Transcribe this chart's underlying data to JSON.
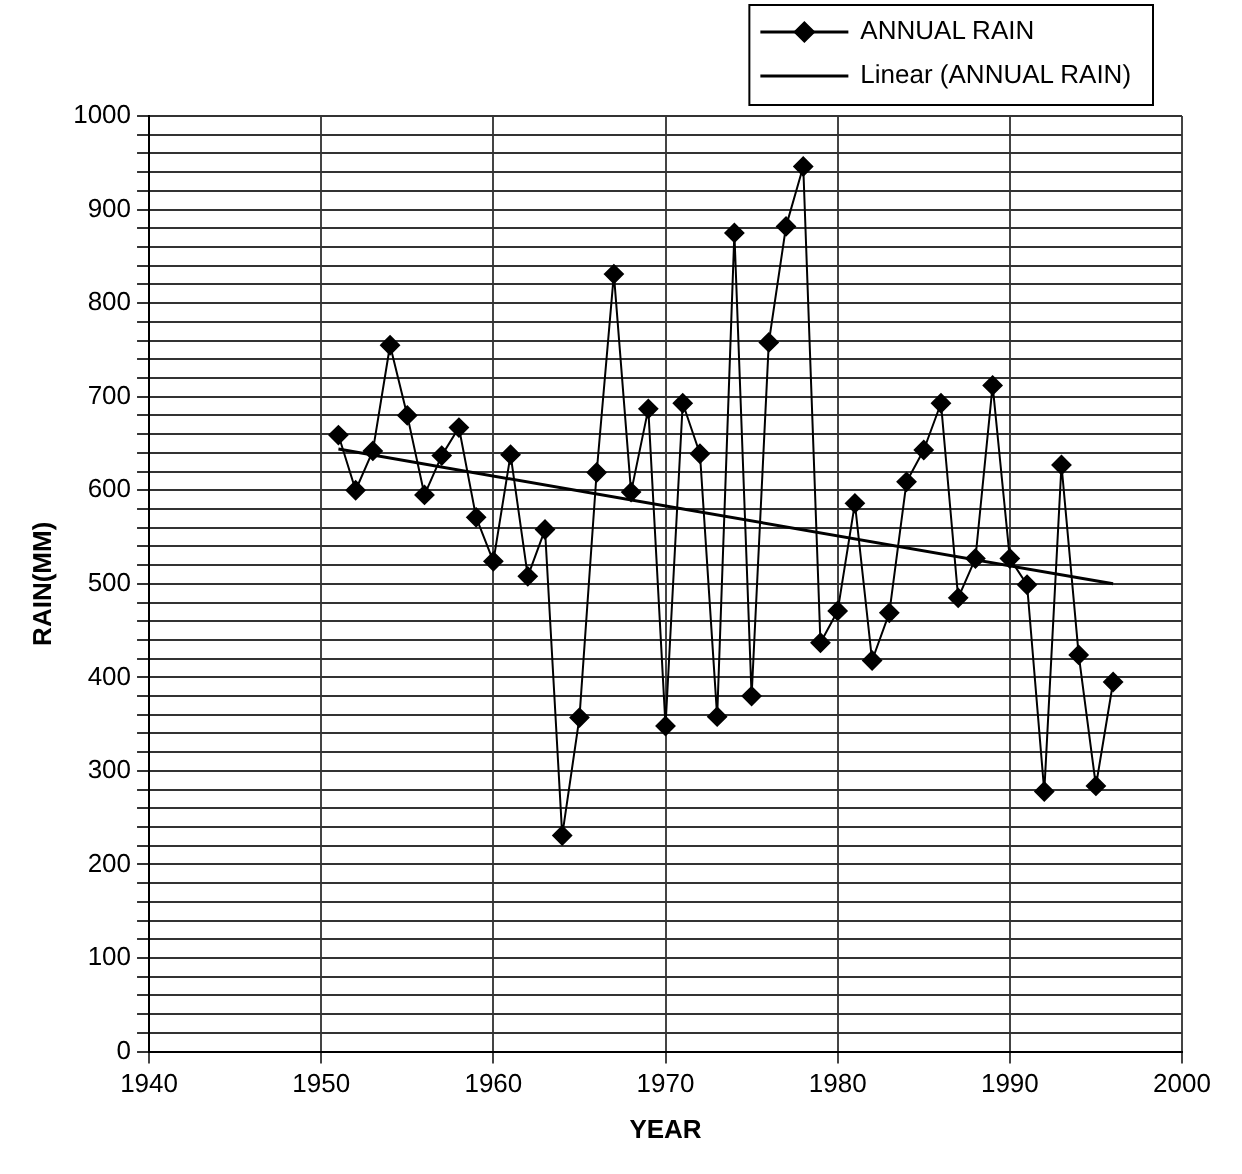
{
  "chart_data": {
    "type": "line",
    "xlabel": "YEAR",
    "ylabel": "RAIN(MM)",
    "x": [
      1951,
      1952,
      1953,
      1954,
      1955,
      1956,
      1957,
      1958,
      1959,
      1960,
      1961,
      1962,
      1963,
      1964,
      1965,
      1966,
      1967,
      1968,
      1969,
      1970,
      1971,
      1972,
      1973,
      1974,
      1975,
      1976,
      1977,
      1978,
      1979,
      1980,
      1981,
      1982,
      1983,
      1984,
      1985,
      1986,
      1987,
      1988,
      1989,
      1990,
      1991,
      1992,
      1993,
      1994,
      1995,
      1996
    ],
    "series": [
      {
        "name": "ANNUAL RAIN",
        "color": "#000000",
        "values": [
          659,
          600,
          642,
          755,
          680,
          595,
          637,
          667,
          571,
          524,
          638,
          508,
          558,
          231,
          357,
          619,
          831,
          598,
          687,
          348,
          693,
          639,
          358,
          875,
          380,
          758,
          882,
          946,
          437,
          471,
          586,
          418,
          469,
          609,
          643,
          693,
          485,
          527,
          712,
          527,
          499,
          278,
          627,
          424,
          284,
          395
        ]
      },
      {
        "name": "Linear (ANNUAL RAIN)",
        "type": "line",
        "marker": "none",
        "color": "#000000",
        "x": [
          1951,
          1996
        ],
        "values": [
          644,
          500
        ]
      }
    ],
    "marker": "diamond",
    "line_style": "solid",
    "legend": "top right",
    "grid": true,
    "xlim": [
      1940,
      2000
    ],
    "xticks": [
      1940,
      1950,
      1960,
      1970,
      1980,
      1990,
      2000
    ],
    "ylim": [
      0,
      1000
    ],
    "yticks": [
      0,
      {
        "value": 20,
        "label": null
      },
      {
        "value": 40,
        "label": null
      },
      {
        "value": 60,
        "label": null
      },
      {
        "value": 80,
        "label": null
      },
      100,
      {
        "value": 120,
        "label": null
      },
      {
        "value": 140,
        "label": null
      },
      {
        "value": 160,
        "label": null
      },
      {
        "value": 180,
        "label": null
      },
      200,
      {
        "value": 220,
        "label": null
      },
      {
        "value": 240,
        "label": null
      },
      {
        "value": 260,
        "label": null
      },
      {
        "value": 280,
        "label": null
      },
      300,
      {
        "value": 320,
        "label": null
      },
      {
        "value": 340,
        "label": null
      },
      {
        "value": 360,
        "label": null
      },
      {
        "value": 380,
        "label": null
      },
      400,
      {
        "value": 420,
        "label": null
      },
      {
        "value": 440,
        "label": null
      },
      {
        "value": 460,
        "label": null
      },
      {
        "value": 480,
        "label": null
      },
      500,
      {
        "value": 520,
        "label": null
      },
      {
        "value": 540,
        "label": null
      },
      {
        "value": 560,
        "label": null
      },
      {
        "value": 580,
        "label": null
      },
      600,
      {
        "value": 620,
        "label": null
      },
      {
        "value": 640,
        "label": null
      },
      {
        "value": 660,
        "label": null
      },
      {
        "value": 680,
        "label": null
      },
      700,
      {
        "value": 720,
        "label": null
      },
      {
        "value": 740,
        "label": null
      },
      {
        "value": 760,
        "label": null
      },
      {
        "value": 780,
        "label": null
      },
      800,
      {
        "value": 820,
        "label": null
      },
      {
        "value": 840,
        "label": null
      },
      {
        "value": 860,
        "label": null
      },
      {
        "value": 880,
        "label": null
      },
      900,
      {
        "value": 920,
        "label": null
      },
      {
        "value": 940,
        "label": null
      },
      {
        "value": 960,
        "label": null
      },
      {
        "value": 980,
        "label": null
      },
      1000
    ]
  }
}
